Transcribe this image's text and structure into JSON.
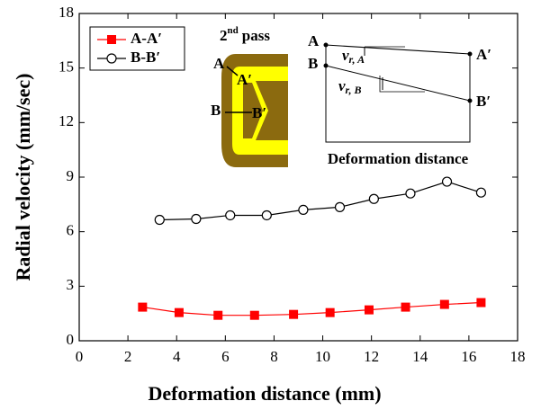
{
  "chart_data": {
    "type": "line",
    "x_label": "Deformation distance (mm)",
    "y_label": "Radial velocity (mm/sec)",
    "xlim": [
      0,
      18
    ],
    "xticks": [
      0,
      2,
      4,
      6,
      8,
      10,
      12,
      14,
      16,
      18
    ],
    "ylim": [
      0,
      18
    ],
    "yticks": [
      0,
      3,
      6,
      9,
      12,
      15,
      18
    ],
    "legend": "upper left",
    "series": [
      {
        "name": "A-A′",
        "color": "#ff0000",
        "marker": "square",
        "x": [
          2.6,
          4.1,
          5.7,
          7.2,
          8.8,
          10.3,
          11.9,
          13.4,
          15.0,
          16.5
        ],
        "values": [
          1.85,
          1.55,
          1.4,
          1.4,
          1.45,
          1.55,
          1.7,
          1.85,
          2.0,
          2.1
        ]
      },
      {
        "name": "B-B′",
        "color": "#000000",
        "marker": "open-circle",
        "x": [
          3.3,
          4.8,
          6.2,
          7.7,
          9.2,
          10.7,
          12.1,
          13.6,
          15.1,
          16.5
        ],
        "values": [
          6.65,
          6.7,
          6.9,
          6.9,
          7.2,
          7.35,
          7.8,
          8.1,
          8.75,
          8.15
        ]
      }
    ],
    "inset": {
      "pass_number": "2",
      "pass_suffix": "nd",
      "pass_text": "pass",
      "section_a": "A",
      "section_a2": "A′",
      "section_b": "B",
      "section_b2": "B′",
      "velocity_symbol": "v",
      "velocity_a_sub": "r, A",
      "velocity_b_sub": "r, B",
      "schematic_x_label": "Deformation distance"
    }
  }
}
